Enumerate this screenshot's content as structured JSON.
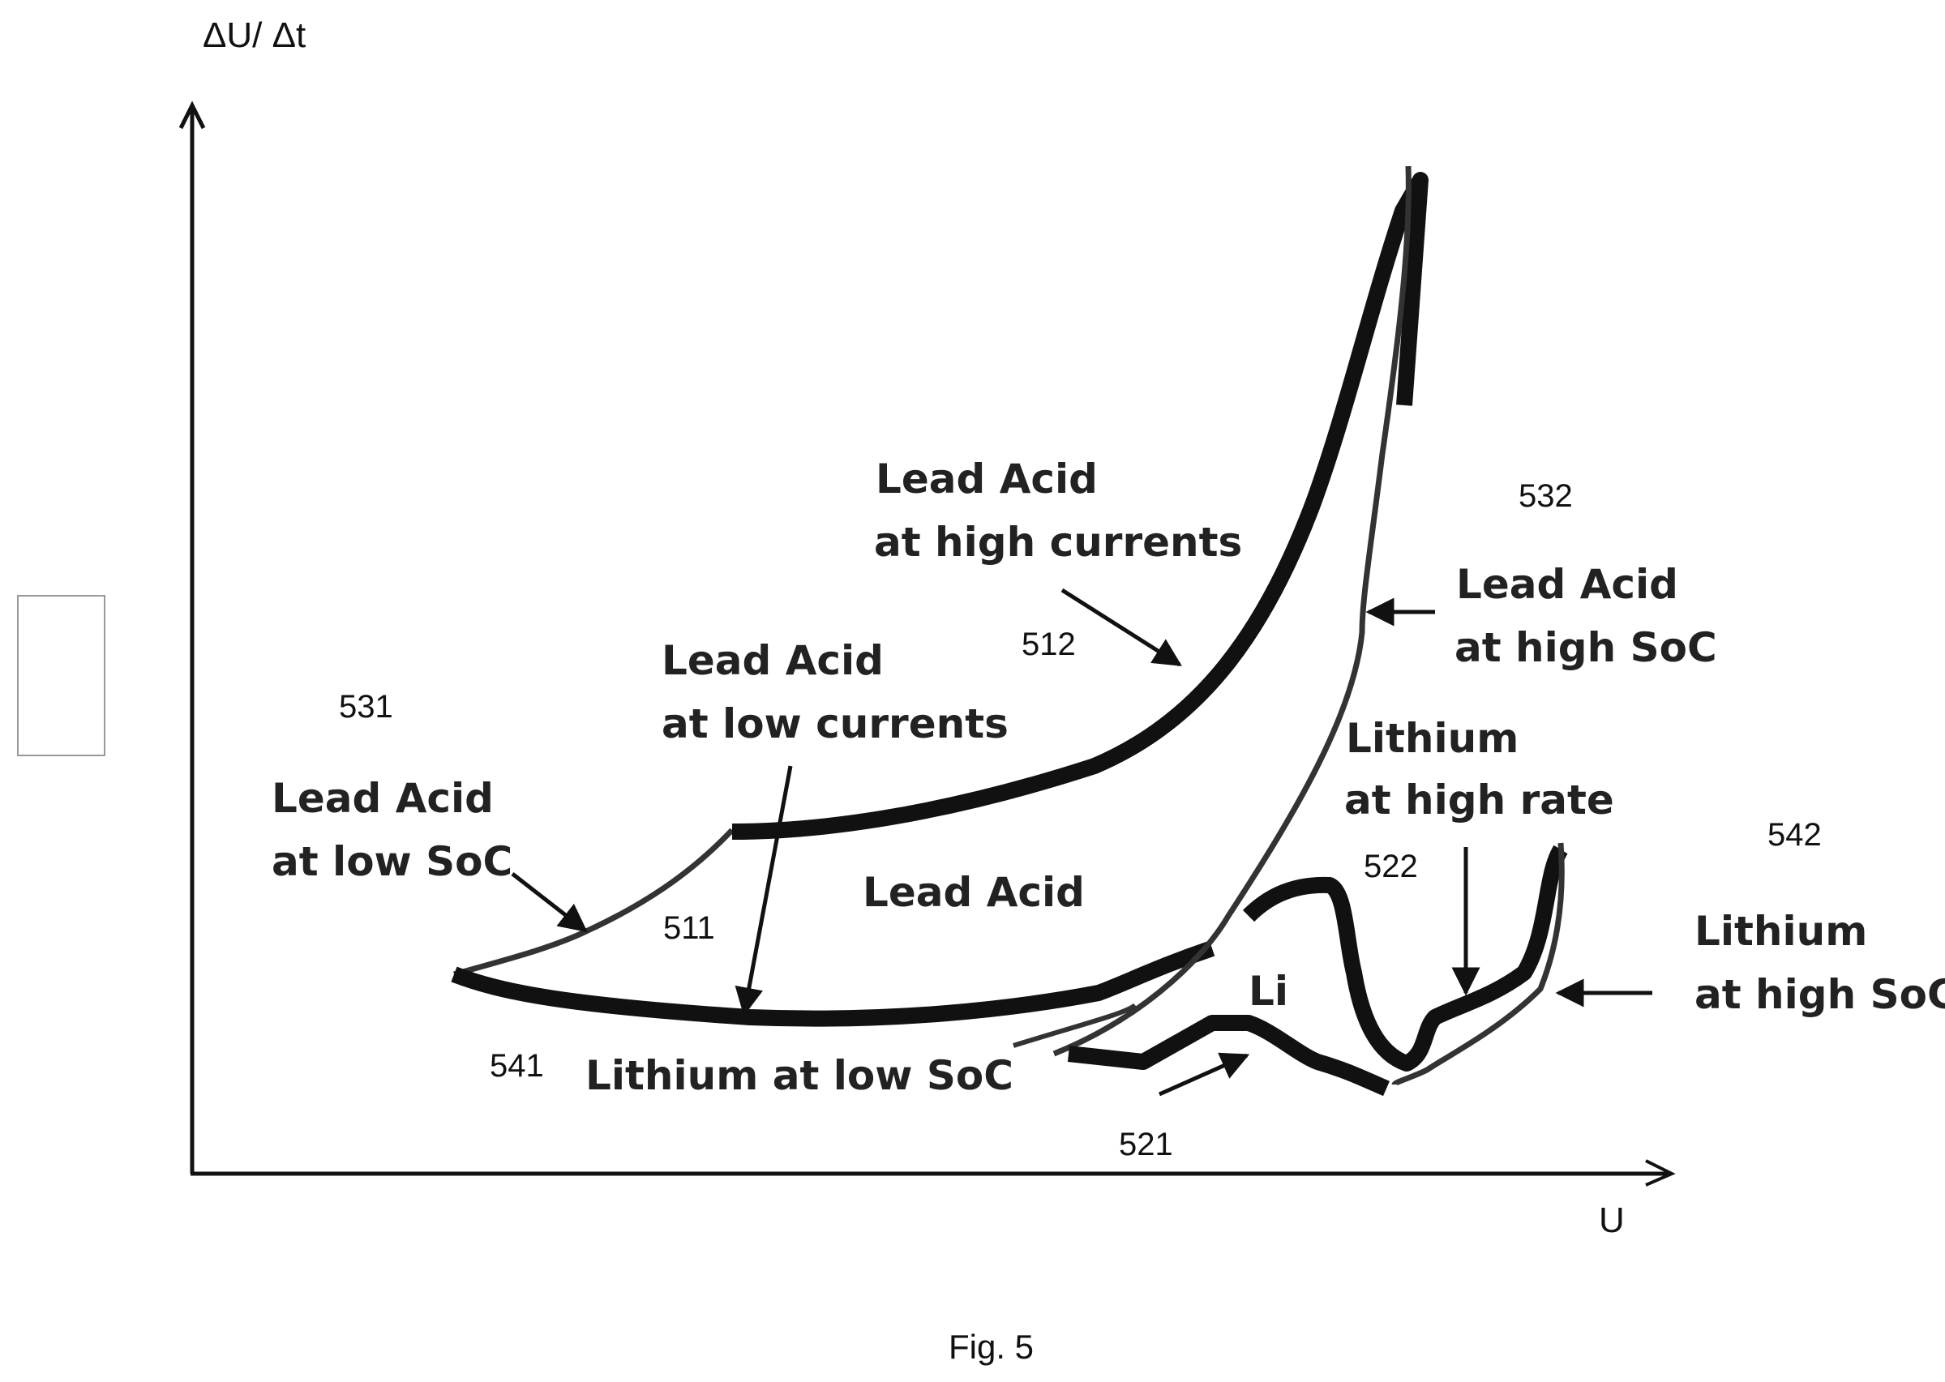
{
  "figure": {
    "caption": "Fig. 5",
    "y_axis_label": "ΔU/ Δt",
    "x_axis_label": "U",
    "reference_numbers": {
      "n531": "531",
      "n532": "532",
      "n512": "512",
      "n511": "511",
      "n541": "541",
      "n522": "522",
      "n542": "542",
      "n521": "521"
    },
    "labels": {
      "la_high_currents_l1": "Lead Acid",
      "la_high_currents_l2": "at high currents",
      "la_high_soc_l1": "Lead Acid",
      "la_high_soc_l2": "at high SoC",
      "la_low_currents_l1": "Lead Acid",
      "la_low_currents_l2": "at low currents",
      "la_low_soc_l1": "Lead Acid",
      "la_low_soc_l2": "at low SoC",
      "lead_acid_region": "Lead Acid",
      "li_high_rate_l1": "Lithium",
      "li_high_rate_l2": "at high rate",
      "li_high_soc_l1": "Lithium",
      "li_high_soc_l2": "at high SoC",
      "li_region": "Li",
      "li_low_soc": "Lithium at low SoC"
    }
  }
}
